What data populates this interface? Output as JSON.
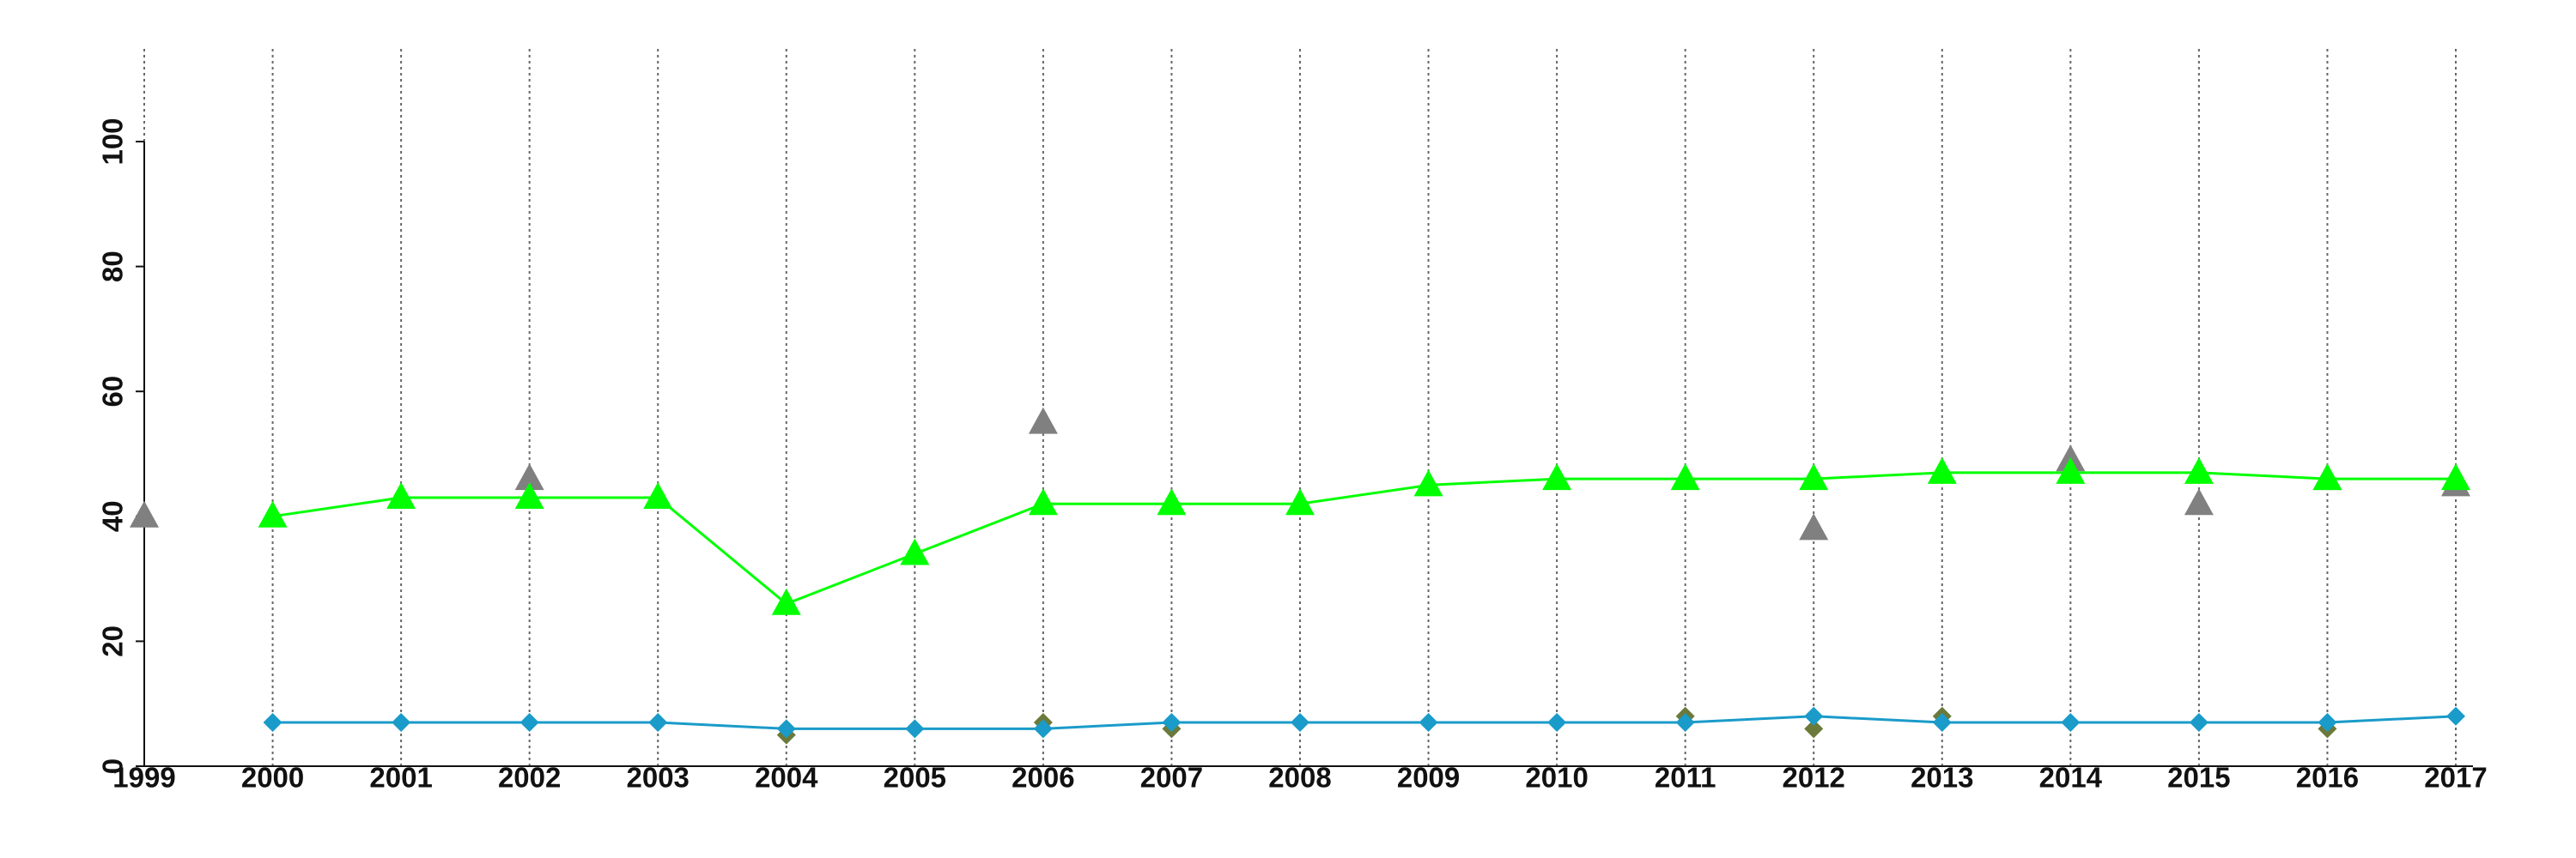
{
  "chart_data": {
    "type": "line",
    "x": [
      1999,
      2000,
      2001,
      2002,
      2003,
      2004,
      2005,
      2006,
      2007,
      2008,
      2009,
      2010,
      2011,
      2012,
      2013,
      2014,
      2015,
      2016,
      2017
    ],
    "series": [
      {
        "color": "#808080",
        "marker": "triangle",
        "line": false,
        "values": [
          40,
          null,
          null,
          46,
          null,
          null,
          null,
          55,
          null,
          null,
          null,
          null,
          null,
          38,
          null,
          49,
          42,
          46,
          45
        ]
      },
      {
        "color": "#00ff00",
        "marker": "triangle",
        "line": true,
        "values": [
          null,
          40,
          43,
          43,
          43,
          26,
          34,
          42,
          42,
          42,
          45,
          46,
          46,
          46,
          47,
          47,
          47,
          46,
          46
        ]
      },
      {
        "color": "#6b7a3a",
        "marker": "diamond",
        "line": false,
        "values": [
          null,
          null,
          null,
          null,
          null,
          5,
          null,
          7,
          6,
          null,
          null,
          null,
          8,
          6,
          8,
          null,
          null,
          6,
          null
        ]
      },
      {
        "color": "#1a9bc9",
        "marker": "diamond",
        "line": true,
        "values": [
          null,
          7,
          7,
          7,
          7,
          6,
          6,
          6,
          7,
          7,
          7,
          7,
          7,
          8,
          7,
          7,
          7,
          7,
          8
        ]
      }
    ],
    "xlim": [
      1999,
      2017
    ],
    "xticks": [
      1999,
      2000,
      2001,
      2002,
      2003,
      2004,
      2005,
      2006,
      2007,
      2008,
      2009,
      2010,
      2011,
      2012,
      2013,
      2014,
      2015,
      2016,
      2017
    ],
    "ylim": [
      0,
      100
    ],
    "yticks": [
      0,
      20,
      40,
      60,
      80,
      100
    ],
    "grid": true
  }
}
